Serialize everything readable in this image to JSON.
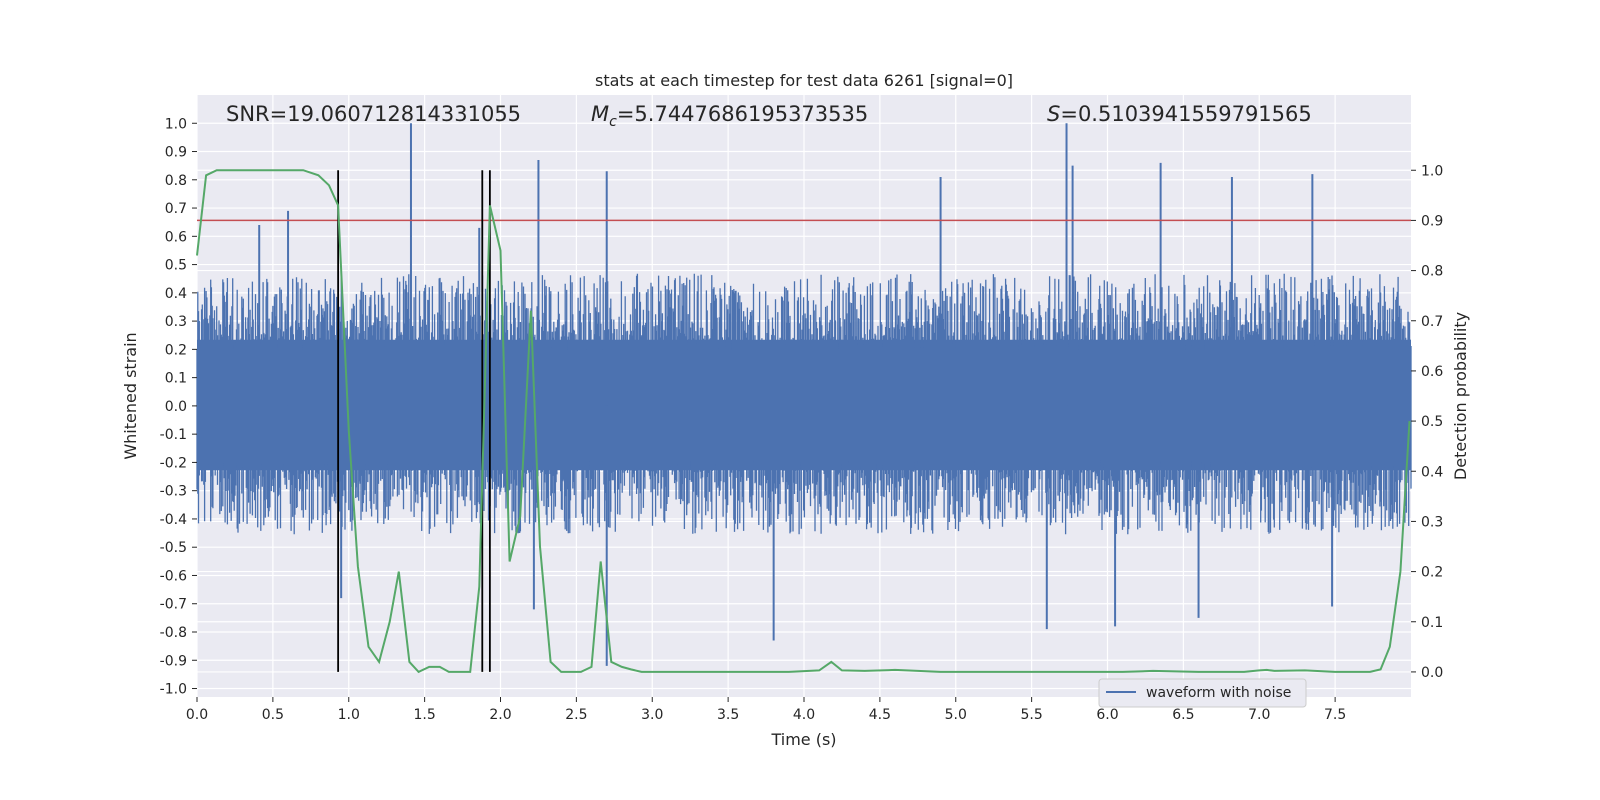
{
  "chart_data": {
    "type": "line",
    "title": "stats at each timestep for test data 6261 [signal=0]",
    "xlabel": "Time (s)",
    "ylabel": "Whitened strain",
    "ylabel_right": "Detection probability",
    "xlim": [
      0.0,
      8.0
    ],
    "ylim": [
      -1.03,
      1.1
    ],
    "ylim_right": [
      -0.05,
      1.15
    ],
    "x_ticks": [
      "0.0",
      "0.5",
      "1.0",
      "1.5",
      "2.0",
      "2.5",
      "3.0",
      "3.5",
      "4.0",
      "4.5",
      "5.0",
      "5.5",
      "6.0",
      "6.5",
      "7.0",
      "7.5"
    ],
    "y_ticks": [
      "1.0",
      "0.9",
      "0.8",
      "0.7",
      "0.6",
      "0.5",
      "0.4",
      "0.3",
      "0.2",
      "0.1",
      "0.0",
      "-0.1",
      "-0.2",
      "-0.3",
      "-0.4",
      "-0.5",
      "-0.6",
      "-0.7",
      "-0.8",
      "-0.9",
      "-1.0"
    ],
    "y_right_ticks": [
      "1.0",
      "0.9",
      "0.8",
      "0.7",
      "0.6",
      "0.5",
      "0.4",
      "0.3",
      "0.2",
      "0.1",
      "0.0"
    ],
    "annotations": {
      "snr_text": "SNR=19.060712814331055",
      "mc_symbol": "M",
      "mc_sub": "c",
      "mc_value": "=5.7447686195373535",
      "s_symbol": "S",
      "s_value": "=0.5103941559791565"
    },
    "legend": {
      "label": "waveform with noise",
      "placement": "lower-right"
    },
    "threshold": {
      "axis": "right",
      "value": 0.9
    },
    "vertical_lines": [
      0.93,
      1.88,
      1.93
    ],
    "detection_probability": {
      "x": [
        0.0,
        0.06,
        0.13,
        0.2,
        0.3,
        0.4,
        0.5,
        0.6,
        0.7,
        0.8,
        0.87,
        0.93,
        1.0,
        1.06,
        1.13,
        1.2,
        1.27,
        1.33,
        1.4,
        1.46,
        1.53,
        1.6,
        1.66,
        1.73,
        1.8,
        1.86,
        1.93,
        2.0,
        2.06,
        2.13,
        2.2,
        2.26,
        2.33,
        2.4,
        2.46,
        2.53,
        2.6,
        2.66,
        2.73,
        2.8,
        2.86,
        2.93,
        3.0,
        3.1,
        3.3,
        3.6,
        3.9,
        4.1,
        4.18,
        4.25,
        4.4,
        4.6,
        4.75,
        4.9,
        5.3,
        5.7,
        6.1,
        6.3,
        6.6,
        6.9,
        7.0,
        7.05,
        7.1,
        7.3,
        7.5,
        7.66,
        7.73,
        7.8,
        7.86,
        7.93,
        7.99
      ],
      "y": [
        0.83,
        0.99,
        1.0,
        1.0,
        1.0,
        1.0,
        1.0,
        1.0,
        1.0,
        0.99,
        0.97,
        0.93,
        0.48,
        0.21,
        0.05,
        0.02,
        0.1,
        0.2,
        0.02,
        0.0,
        0.01,
        0.01,
        0.0,
        0.0,
        0.0,
        0.17,
        0.93,
        0.84,
        0.22,
        0.31,
        0.72,
        0.25,
        0.02,
        0.0,
        0.0,
        0.0,
        0.01,
        0.22,
        0.02,
        0.01,
        0.005,
        0.0,
        0.0,
        0.0,
        0.0,
        0.0,
        0.0,
        0.003,
        0.02,
        0.003,
        0.002,
        0.004,
        0.002,
        0.0,
        0.0,
        0.0,
        0.0,
        0.002,
        0.0,
        0.0,
        0.003,
        0.004,
        0.002,
        0.003,
        0.0,
        0.0,
        0.0,
        0.005,
        0.05,
        0.2,
        0.5
      ]
    },
    "whitened_strain": {
      "envelope_pos": 0.36,
      "envelope_neg": -0.35,
      "spikes": [
        {
          "x": 0.41,
          "y": 0.64
        },
        {
          "x": 0.6,
          "y": 0.69
        },
        {
          "x": 1.41,
          "y": 1.0
        },
        {
          "x": 1.86,
          "y": 0.63
        },
        {
          "x": 2.25,
          "y": 0.87
        },
        {
          "x": 2.7,
          "y": 0.83
        },
        {
          "x": 4.9,
          "y": 0.81
        },
        {
          "x": 5.73,
          "y": 1.0
        },
        {
          "x": 5.77,
          "y": 0.85
        },
        {
          "x": 6.35,
          "y": 0.86
        },
        {
          "x": 6.82,
          "y": 0.81
        },
        {
          "x": 7.35,
          "y": 0.82
        },
        {
          "x": 2.7,
          "y": -0.92
        },
        {
          "x": 3.8,
          "y": -0.83
        },
        {
          "x": 5.6,
          "y": -0.79
        },
        {
          "x": 6.05,
          "y": -0.78
        },
        {
          "x": 6.6,
          "y": -0.75
        },
        {
          "x": 7.48,
          "y": -0.71
        },
        {
          "x": 0.95,
          "y": -0.68
        },
        {
          "x": 2.22,
          "y": -0.72
        }
      ]
    },
    "colors": {
      "plot_bg": "#eaeaf2",
      "grid": "#ffffff",
      "strain": "#4c72b0",
      "probability": "#55a868",
      "threshold": "#c44e52",
      "vlines": "#000000"
    }
  }
}
